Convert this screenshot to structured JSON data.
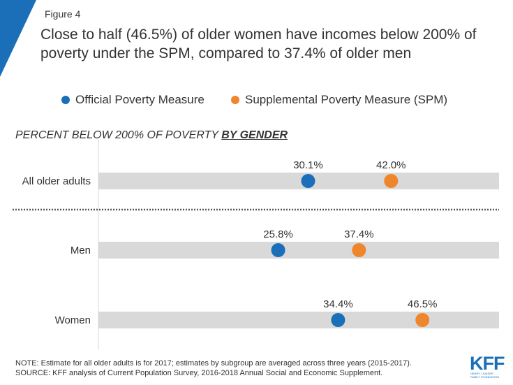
{
  "figure_label": "Figure 4",
  "title": "Close to half (46.5%) of older women have incomes below 200% of poverty under the SPM, compared to 37.4% of older men",
  "colors": {
    "official": "#1a6fb8",
    "spm": "#f0862c",
    "track": "#d9d9d9",
    "brand": "#1a6fb8"
  },
  "legend": [
    {
      "label": "Official Poverty Measure",
      "color": "#1a6fb8"
    },
    {
      "label": "Supplemental Poverty Measure (SPM)",
      "color": "#f0862c"
    }
  ],
  "section_heading": {
    "text": "PERCENT BELOW 200% OF POVERTY ",
    "emphasis": "BY GENDER"
  },
  "chart_data": {
    "type": "scatter",
    "categories": [
      "All older adults",
      "Men",
      "Women"
    ],
    "series": [
      {
        "name": "Official Poverty Measure",
        "values": [
          30.1,
          25.8,
          34.4
        ],
        "labels": [
          "30.1%",
          "25.8%",
          "34.4%"
        ]
      },
      {
        "name": "Supplemental Poverty Measure (SPM)",
        "values": [
          42.0,
          37.4,
          46.5
        ],
        "labels": [
          "42.0%",
          "37.4%",
          "46.5%"
        ]
      }
    ],
    "title": "Close to half (46.5%) of older women have incomes below 200% of poverty under the SPM, compared to 37.4% of older men",
    "xlabel": "",
    "ylabel": "",
    "xlim": [
      0,
      57.5
    ],
    "grid": false,
    "legend_position": "top"
  },
  "note": {
    "line1": "NOTE: Estimate for all older adults is for 2017; estimates by subgroup are averaged across three years (2015-2017).",
    "line2": "SOURCE: KFF analysis of Current Population Survey, 2016-2018 Annual Social and Economic Supplement."
  },
  "logo": {
    "text": "KFF",
    "subtitle_line1": "HENRY J KAISER",
    "subtitle_line2": "FAMILY FOUNDATION"
  }
}
